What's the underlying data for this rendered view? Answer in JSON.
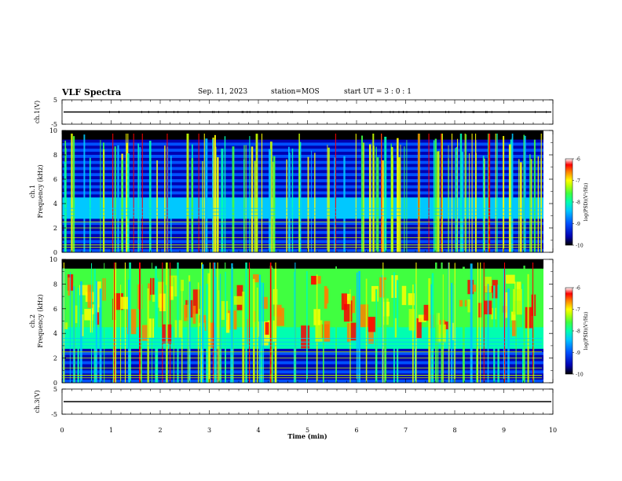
{
  "header": {
    "title": "VLF Spectra",
    "date": "Sep. 11, 2023",
    "station": "station=MOS",
    "start": "start  UT =   3 : 0  : 1"
  },
  "chart_data": [
    {
      "type": "line",
      "ylabel": "ch.1(V)",
      "ylim": [
        -5,
        5
      ],
      "yticks": [
        "5",
        "-5"
      ],
      "series": [
        {
          "values": [
            0,
            0
          ]
        }
      ]
    },
    {
      "type": "heatmap",
      "ylabel": "ch.1 Frequency (kHz)",
      "ylim": [
        0,
        10
      ],
      "yticks": [
        "0",
        "2",
        "4",
        "6",
        "8",
        "10"
      ],
      "colorbar": {
        "label": "log(PSD)(V²/Hz)",
        "range": [
          -10,
          -6
        ],
        "ticks": [
          "-6",
          "-7",
          "-8",
          "-9",
          "-10"
        ]
      }
    },
    {
      "type": "heatmap",
      "ylabel": "ch.2 Frequency (kHz)",
      "ylim": [
        0,
        10
      ],
      "yticks": [
        "0",
        "2",
        "4",
        "6",
        "8",
        "10"
      ],
      "colorbar": {
        "label": "log(PSD)(V²/Hz)",
        "range": [
          -10,
          -6
        ],
        "ticks": [
          "-6",
          "-7",
          "-8",
          "-9",
          "-10"
        ]
      }
    },
    {
      "type": "line",
      "ylabel": "ch.3(V)",
      "ylim": [
        -5,
        5
      ],
      "yticks": [
        "5",
        "-5"
      ],
      "series": [
        {
          "values": [
            0,
            0
          ]
        }
      ]
    }
  ],
  "xaxis": {
    "label": "Time (min)",
    "xlim": [
      0,
      10
    ],
    "ticks": [
      "0",
      "1",
      "2",
      "3",
      "4",
      "5",
      "6",
      "7",
      "8",
      "9",
      "10"
    ]
  },
  "colors": {
    "background": "#ffffff",
    "colormap": [
      "#000000",
      "#0000b0",
      "#0050ff",
      "#00c8ff",
      "#00ffb0",
      "#40ff40",
      "#c8ff00",
      "#ffff00",
      "#ff8000",
      "#ff0000",
      "#ffffff"
    ]
  }
}
